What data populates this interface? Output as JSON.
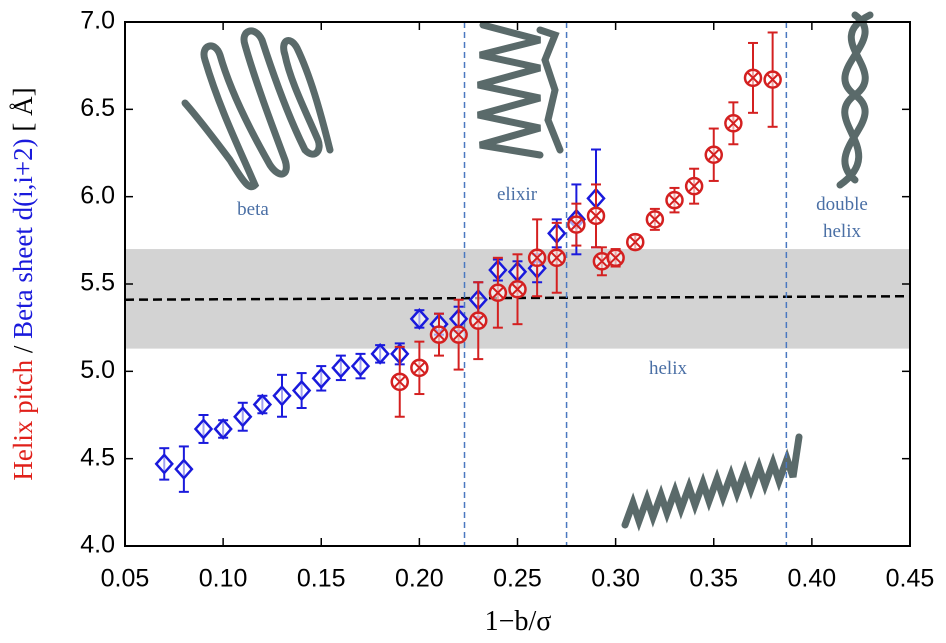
{
  "chart_data": {
    "type": "errorbar-scatter",
    "x_label": "1−b/σ",
    "y_label_parts": [
      {
        "text": "Helix pitch",
        "color": "#e0201a"
      },
      {
        "text": " / ",
        "color": "#000000"
      },
      {
        "text": "Beta sheet d(i,i+2)",
        "color": "#1a1adc"
      },
      {
        "text": " [ Å]",
        "color": "#000000"
      }
    ],
    "xlim": [
      0.05,
      0.45
    ],
    "ylim": [
      4.0,
      7.0
    ],
    "xticks": [
      0.05,
      {
        "value": 0.1,
        "label": "0.10"
      },
      0.15,
      {
        "value": 0.2,
        "label": "0.20"
      },
      0.25,
      {
        "value": 0.3,
        "label": "0.30"
      },
      0.35,
      {
        "value": 0.4,
        "label": "0.40"
      },
      0.45
    ],
    "yticks": [
      {
        "value": 4,
        "label": "4.0"
      },
      4.5,
      {
        "value": 5,
        "label": "5.0"
      },
      5.5,
      {
        "value": 6,
        "label": "6.0"
      },
      6.5,
      {
        "value": 7,
        "label": "7.0"
      }
    ],
    "band": [
      5.13,
      5.7
    ],
    "reference_line": [
      5.41,
      5.43
    ],
    "vlines": [
      0.223,
      0.275,
      0.387
    ],
    "annotations": [
      "beta",
      "elixir",
      "helix",
      "double",
      "helix"
    ],
    "series": [
      {
        "color": "#1a1adc",
        "marker": "diamond",
        "x": [
          0.07,
          0.08,
          0.09,
          0.1,
          0.11,
          0.12,
          0.13,
          0.14,
          0.15,
          0.16,
          0.17,
          0.18,
          0.19,
          0.2,
          0.21,
          0.22,
          0.23,
          0.24,
          0.25,
          0.26,
          0.27,
          0.28,
          0.29
        ],
        "values": [
          4.47,
          4.44,
          4.67,
          4.67,
          4.74,
          4.81,
          4.86,
          4.89,
          4.96,
          5.02,
          5.03,
          5.1,
          5.1,
          5.3,
          5.27,
          5.3,
          5.41,
          5.58,
          5.57,
          5.59,
          5.79,
          5.87,
          5.99
        ],
        "errors": [
          0.09,
          0.13,
          0.08,
          0.05,
          0.08,
          0.05,
          0.12,
          0.1,
          0.07,
          0.07,
          0.07,
          0.05,
          0.06,
          0.05,
          0.06,
          0.07,
          0.1,
          0.06,
          0.06,
          0.08,
          0.08,
          0.2,
          0.28
        ]
      },
      {
        "color": "#d42020",
        "marker": "circle-x",
        "x": [
          0.19,
          0.2,
          0.21,
          0.22,
          0.23,
          0.24,
          0.25,
          0.26,
          0.27,
          0.28,
          0.29,
          0.293,
          0.3,
          0.31,
          0.32,
          0.33,
          0.34,
          0.35,
          0.36,
          0.37,
          0.38
        ],
        "values": [
          4.94,
          5.02,
          5.21,
          5.21,
          5.29,
          5.45,
          5.47,
          5.65,
          5.65,
          5.84,
          5.89,
          5.63,
          5.65,
          5.74,
          5.87,
          5.98,
          6.06,
          6.24,
          6.42,
          6.68,
          6.67
        ],
        "errors": [
          0.2,
          0.15,
          0.12,
          0.2,
          0.22,
          0.2,
          0.2,
          0.22,
          0.2,
          0.12,
          0.18,
          0.08,
          0.05,
          0.04,
          0.06,
          0.07,
          0.1,
          0.15,
          0.12,
          0.2,
          0.27
        ]
      }
    ]
  }
}
